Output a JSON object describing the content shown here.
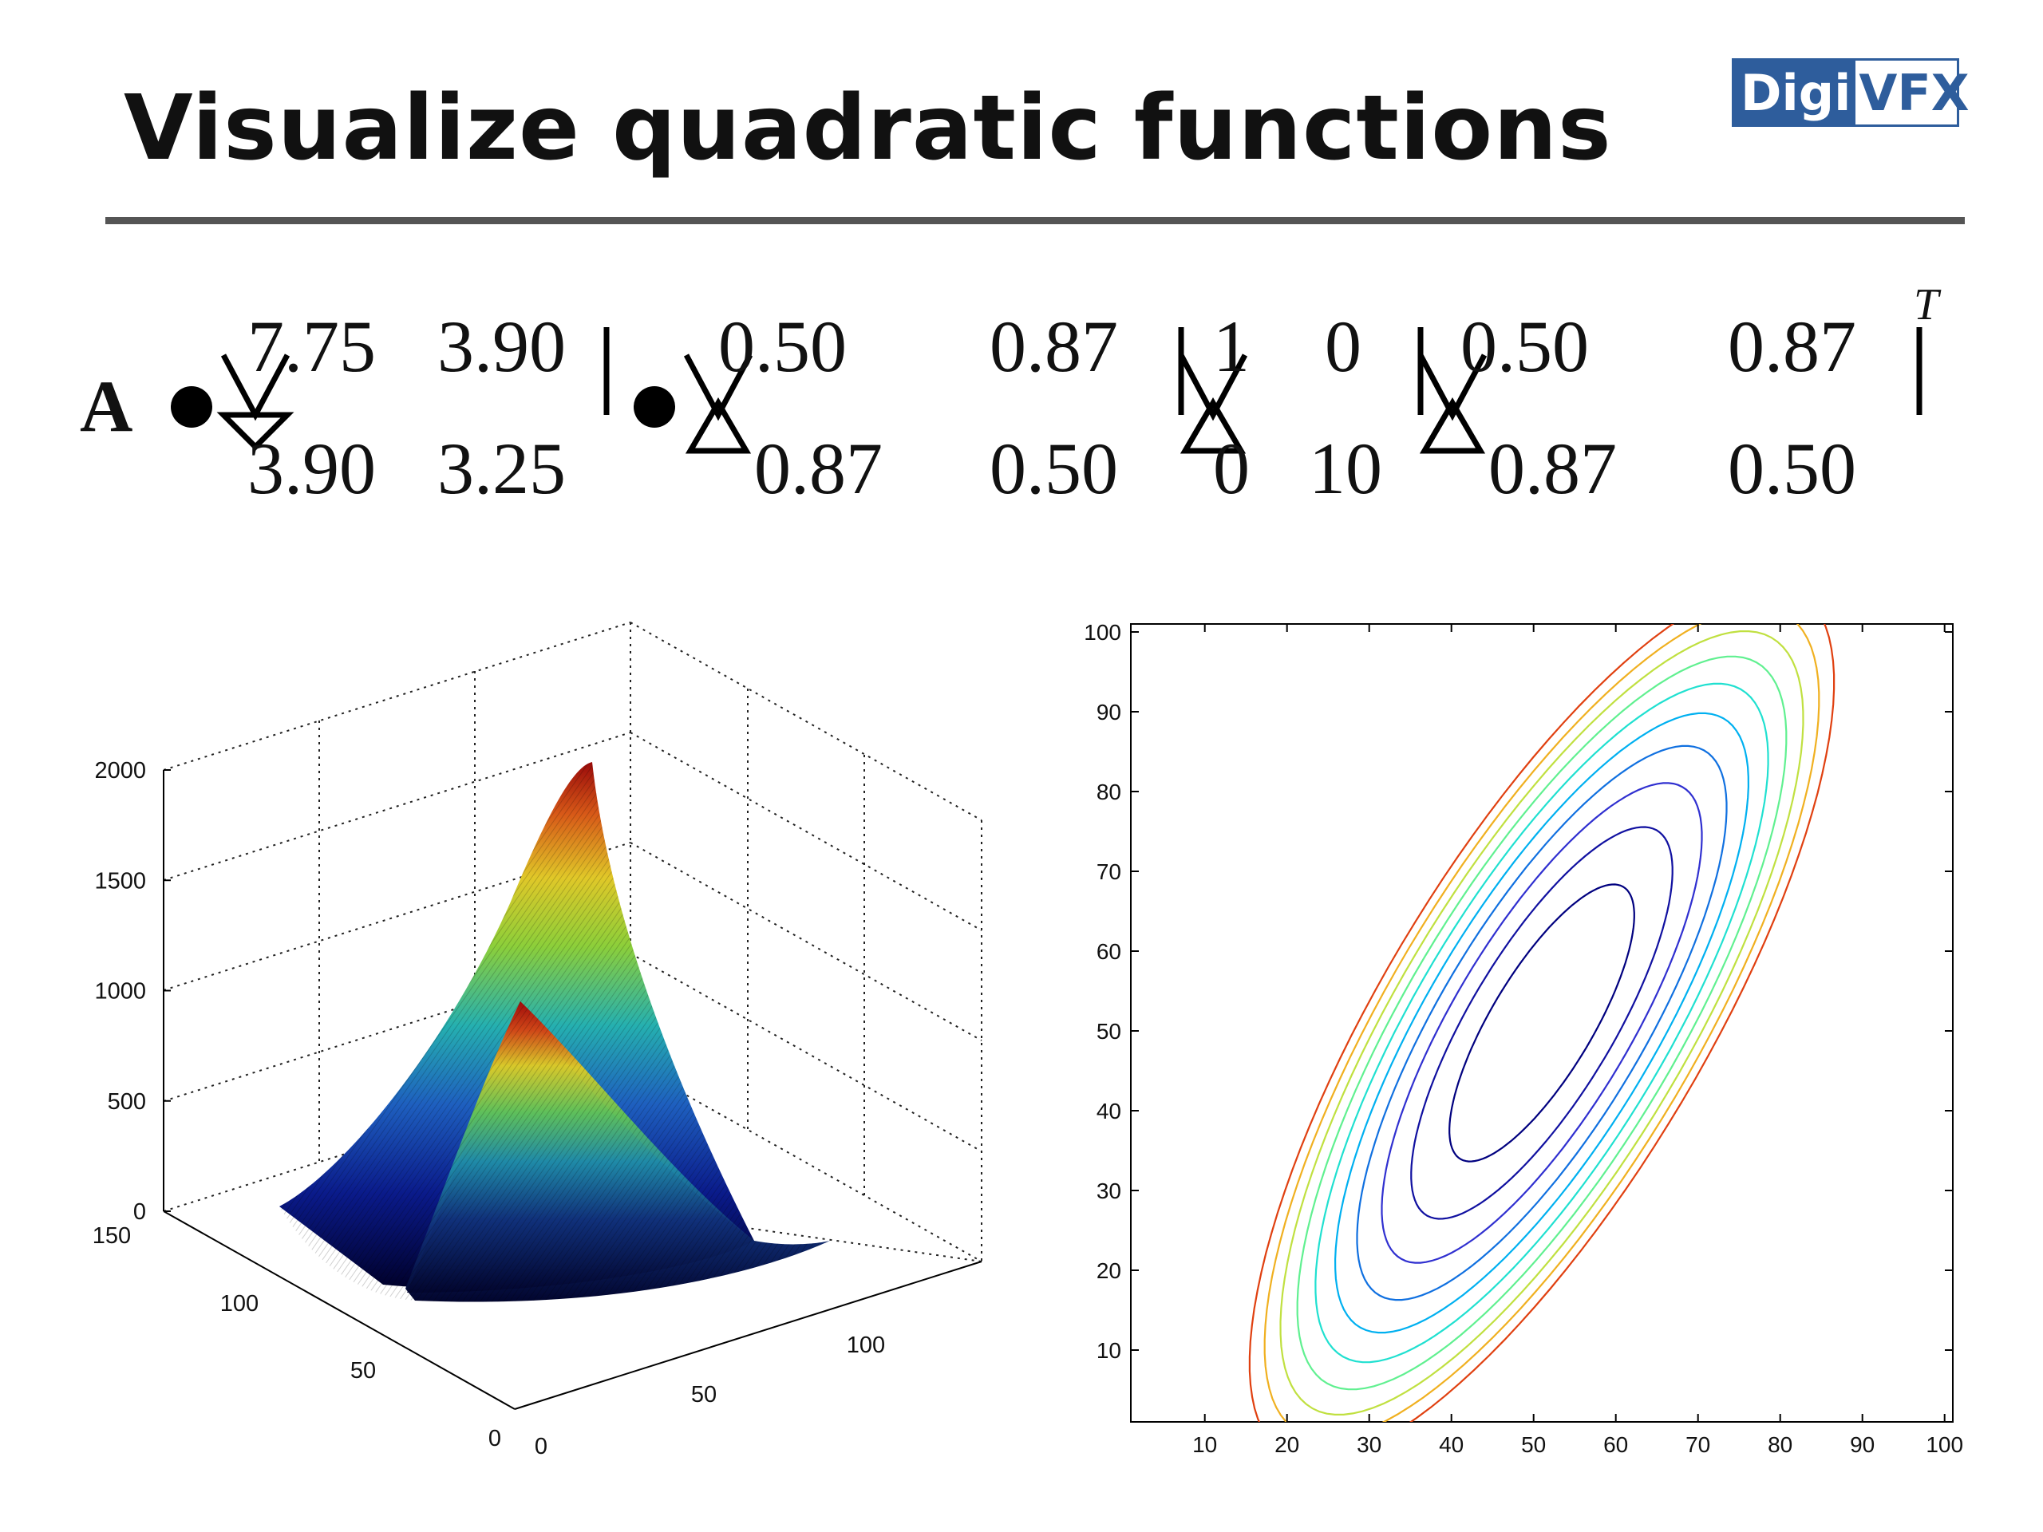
{
  "title": "Visualize quadratic functions",
  "logo": {
    "part1": "Digi",
    "part2": "VFX"
  },
  "equation": {
    "lhs": "A",
    "transpose_mark": "T",
    "rows": [
      [
        "7.75",
        "3.90",
        "0.50",
        "0.87",
        "1",
        "0",
        "0.50",
        "0.87"
      ],
      [
        "3.90",
        "3.25",
        "0.87",
        "0.50",
        "0",
        "10",
        "0.87",
        "0.50"
      ]
    ]
  },
  "chart_data": [
    {
      "type": "surface",
      "zticks": [
        "0",
        "500",
        "1000",
        "1500",
        "2000"
      ],
      "xticks": [
        "0",
        "50",
        "100"
      ],
      "yticks": [
        "0",
        "50",
        "100",
        "150"
      ],
      "zlim": [
        0,
        2000
      ],
      "grid": true
    },
    {
      "type": "contour",
      "xticks": [
        "10",
        "20",
        "30",
        "40",
        "50",
        "60",
        "70",
        "80",
        "90",
        "100"
      ],
      "yticks": [
        "10",
        "20",
        "30",
        "40",
        "50",
        "60",
        "70",
        "80",
        "90",
        "100"
      ],
      "xlim": [
        1,
        101
      ],
      "ylim": [
        1,
        101
      ],
      "quadratic": [
        [
          7.75,
          3.9
        ],
        [
          3.9,
          3.25
        ]
      ],
      "levels": [
        1,
        2,
        3,
        4,
        5,
        6,
        7,
        8,
        9,
        10
      ],
      "colors": [
        "#00007f",
        "#1010a0",
        "#3030d0",
        "#1070e0",
        "#00b0f0",
        "#20e0d0",
        "#60f090",
        "#c0e040",
        "#f0b020",
        "#e04010",
        "#b00000"
      ]
    }
  ]
}
